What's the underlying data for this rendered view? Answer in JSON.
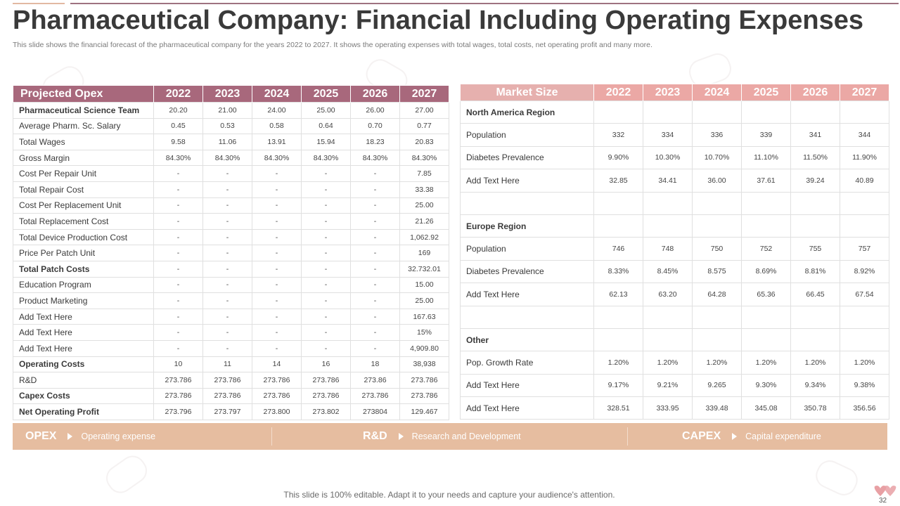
{
  "header": {
    "title": "Pharmaceutical Company: Financial Including Operating Expenses",
    "subtitle": "This slide shows the financial forecast of the pharmaceutical company for the years 2022 to 2027. It shows the operating expenses with total wages, total costs, net operating profit and many more."
  },
  "opex_table": {
    "header": [
      "Projected Opex",
      "2022",
      "2023",
      "2024",
      "2025",
      "2026",
      "2027"
    ],
    "rows": [
      {
        "label": "Pharmaceutical Science Team",
        "bold": true,
        "values": [
          "20.20",
          "21.00",
          "24.00",
          "25.00",
          "26.00",
          "27.00"
        ]
      },
      {
        "label": "Average Pharm. Sc. Salary",
        "bold": false,
        "values": [
          "0.45",
          "0.53",
          "0.58",
          "0.64",
          "0.70",
          "0.77"
        ]
      },
      {
        "label": "Total Wages",
        "bold": false,
        "values": [
          "9.58",
          "11.06",
          "13.91",
          "15.94",
          "18.23",
          "20.83"
        ]
      },
      {
        "label": "Gross Margin",
        "bold": false,
        "values": [
          "84.30%",
          "84.30%",
          "84.30%",
          "84.30%",
          "84.30%",
          "84.30%"
        ]
      },
      {
        "label": "Cost Per Repair Unit",
        "bold": false,
        "values": [
          "-",
          "-",
          "-",
          "-",
          "-",
          "7.85"
        ]
      },
      {
        "label": "Total Repair Cost",
        "bold": false,
        "values": [
          "-",
          "-",
          "-",
          "-",
          "-",
          "33.38"
        ]
      },
      {
        "label": "Cost Per Replacement Unit",
        "bold": false,
        "values": [
          "-",
          "-",
          "-",
          "-",
          "-",
          "25.00"
        ]
      },
      {
        "label": "Total Replacement Cost",
        "bold": false,
        "values": [
          "-",
          "-",
          "-",
          "-",
          "-",
          "21.26"
        ]
      },
      {
        "label": "Total Device Production Cost",
        "bold": false,
        "values": [
          "-",
          "-",
          "-",
          "-",
          "-",
          "1,062.92"
        ]
      },
      {
        "label": "Price Per Patch Unit",
        "bold": false,
        "values": [
          "-",
          "-",
          "-",
          "-",
          "-",
          "169"
        ]
      },
      {
        "label": "Total Patch Costs",
        "bold": true,
        "values": [
          "-",
          "-",
          "-",
          "-",
          "-",
          "32.732.01"
        ]
      },
      {
        "label": "Education Program",
        "bold": false,
        "values": [
          "-",
          "-",
          "-",
          "-",
          "-",
          "15.00"
        ]
      },
      {
        "label": "Product Marketing",
        "bold": false,
        "values": [
          "-",
          "-",
          "-",
          "-",
          "-",
          "25.00"
        ]
      },
      {
        "label": "Add Text Here",
        "bold": false,
        "values": [
          "-",
          "-",
          "-",
          "-",
          "-",
          "167.63"
        ]
      },
      {
        "label": "Add Text Here",
        "bold": false,
        "values": [
          "-",
          "-",
          "-",
          "-",
          "-",
          "15%"
        ]
      },
      {
        "label": "Add Text Here",
        "bold": false,
        "values": [
          "-",
          "-",
          "-",
          "-",
          "-",
          "4,909.80"
        ]
      },
      {
        "label": "Operating Costs",
        "bold": true,
        "values": [
          "10",
          "11",
          "14",
          "16",
          "18",
          "38,938"
        ]
      },
      {
        "label": "R&D",
        "bold": false,
        "values": [
          "273.786",
          "273.786",
          "273.786",
          "273.786",
          "273.86",
          "273.786"
        ]
      },
      {
        "label": "Capex Costs",
        "bold": true,
        "values": [
          "273.786",
          "273.786",
          "273.786",
          "273.786",
          "273.786",
          "273.786"
        ]
      },
      {
        "label": "Net Operating Profit",
        "bold": true,
        "values": [
          "273.796",
          "273.797",
          "273.800",
          "273.802",
          "273804",
          "129.467"
        ]
      }
    ]
  },
  "market_table": {
    "header": [
      "Market Size",
      "2022",
      "2023",
      "2024",
      "2025",
      "2026",
      "2027"
    ],
    "rows": [
      {
        "label": "North America Region",
        "bold": true,
        "values": [
          "",
          "",
          "",
          "",
          "",
          ""
        ]
      },
      {
        "label": "Population",
        "bold": false,
        "values": [
          "332",
          "334",
          "336",
          "339",
          "341",
          "344"
        ]
      },
      {
        "label": "Diabetes Prevalence",
        "bold": false,
        "values": [
          "9.90%",
          "10.30%",
          "10.70%",
          "11.10%",
          "11.50%",
          "11.90%"
        ]
      },
      {
        "label": "Add Text Here",
        "bold": false,
        "values": [
          "32.85",
          "34.41",
          "36.00",
          "37.61",
          "39.24",
          "40.89"
        ]
      },
      {
        "label": "",
        "bold": false,
        "values": [
          "",
          "",
          "",
          "",
          "",
          ""
        ]
      },
      {
        "label": "Europe Region",
        "bold": true,
        "values": [
          "",
          "",
          "",
          "",
          "",
          ""
        ]
      },
      {
        "label": "Population",
        "bold": false,
        "values": [
          "746",
          "748",
          "750",
          "752",
          "755",
          "757"
        ]
      },
      {
        "label": "Diabetes Prevalence",
        "bold": false,
        "values": [
          "8.33%",
          "8.45%",
          "8.575",
          "8.69%",
          "8.81%",
          "8.92%"
        ]
      },
      {
        "label": "Add Text Here",
        "bold": false,
        "values": [
          "62.13",
          "63.20",
          "64.28",
          "65.36",
          "66.45",
          "67.54"
        ]
      },
      {
        "label": "",
        "bold": false,
        "values": [
          "",
          "",
          "",
          "",
          "",
          ""
        ]
      },
      {
        "label": "Other",
        "bold": true,
        "values": [
          "",
          "",
          "",
          "",
          "",
          ""
        ]
      },
      {
        "label": "Pop. Growth Rate",
        "bold": false,
        "values": [
          "1.20%",
          "1.20%",
          "1.20%",
          "1.20%",
          "1.20%",
          "1.20%"
        ]
      },
      {
        "label": "Add Text Here",
        "bold": false,
        "values": [
          "9.17%",
          "9.21%",
          "9.265",
          "9.30%",
          "9.34%",
          "9.38%"
        ]
      },
      {
        "label": "Add Text Here",
        "bold": false,
        "values": [
          "328.51",
          "333.95",
          "339.48",
          "345.08",
          "350.78",
          "356.56"
        ]
      }
    ]
  },
  "legend_bar": {
    "items": [
      {
        "key": "OPEX",
        "desc": "Operating expense"
      },
      {
        "key": "R&D",
        "desc": "Research and Development"
      },
      {
        "key": "CAPEX",
        "desc": "Capital expenditure"
      }
    ]
  },
  "footer": {
    "note": "This slide is 100% editable. Adapt it to your needs and capture your audience's attention.",
    "page_number": "32"
  },
  "colors": {
    "opex_header": "#a8687c",
    "market_header": "#eba8a5",
    "legend_bar": "#e6bda0",
    "logo": "#e8a0a4"
  }
}
